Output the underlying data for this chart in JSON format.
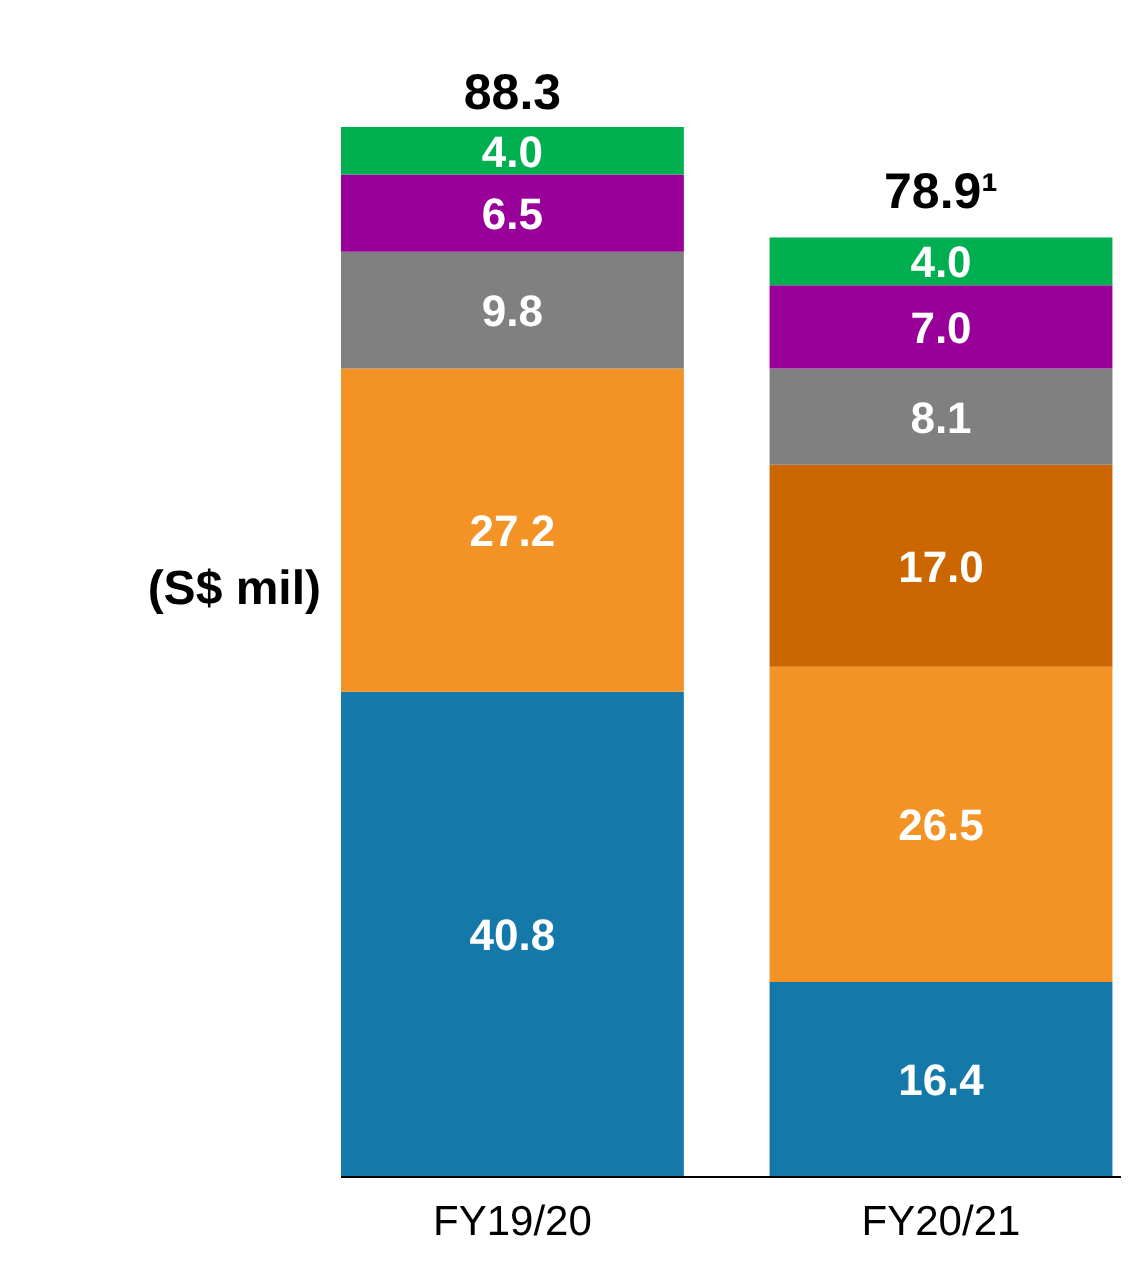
{
  "chart_data": {
    "type": "bar",
    "stacked": true,
    "ylabel": "(S$ mil)",
    "categories": [
      "FY19/20",
      "FY20/21"
    ],
    "series": [
      {
        "color": "#1479a8",
        "values": [
          40.8,
          16.4
        ],
        "value_labels": [
          "40.8",
          "16.4"
        ]
      },
      {
        "color": "#f39325",
        "values": [
          27.2,
          26.5
        ],
        "value_labels": [
          "27.2",
          "26.5"
        ]
      },
      {
        "color": "#cc6600",
        "values": [
          null,
          17.0
        ],
        "value_labels": [
          null,
          "17.0"
        ]
      },
      {
        "color": "#808080",
        "values": [
          9.8,
          8.1
        ],
        "value_labels": [
          "9.8",
          "8.1"
        ]
      },
      {
        "color": "#990099",
        "values": [
          6.5,
          7.0
        ],
        "value_labels": [
          "6.5",
          "7.0"
        ]
      },
      {
        "color": "#00b050",
        "values": [
          4.0,
          4.0
        ],
        "value_labels": [
          "4.0",
          "4.0"
        ]
      }
    ],
    "totals": [
      "88.3",
      "78.9¹"
    ],
    "grid": false
  }
}
